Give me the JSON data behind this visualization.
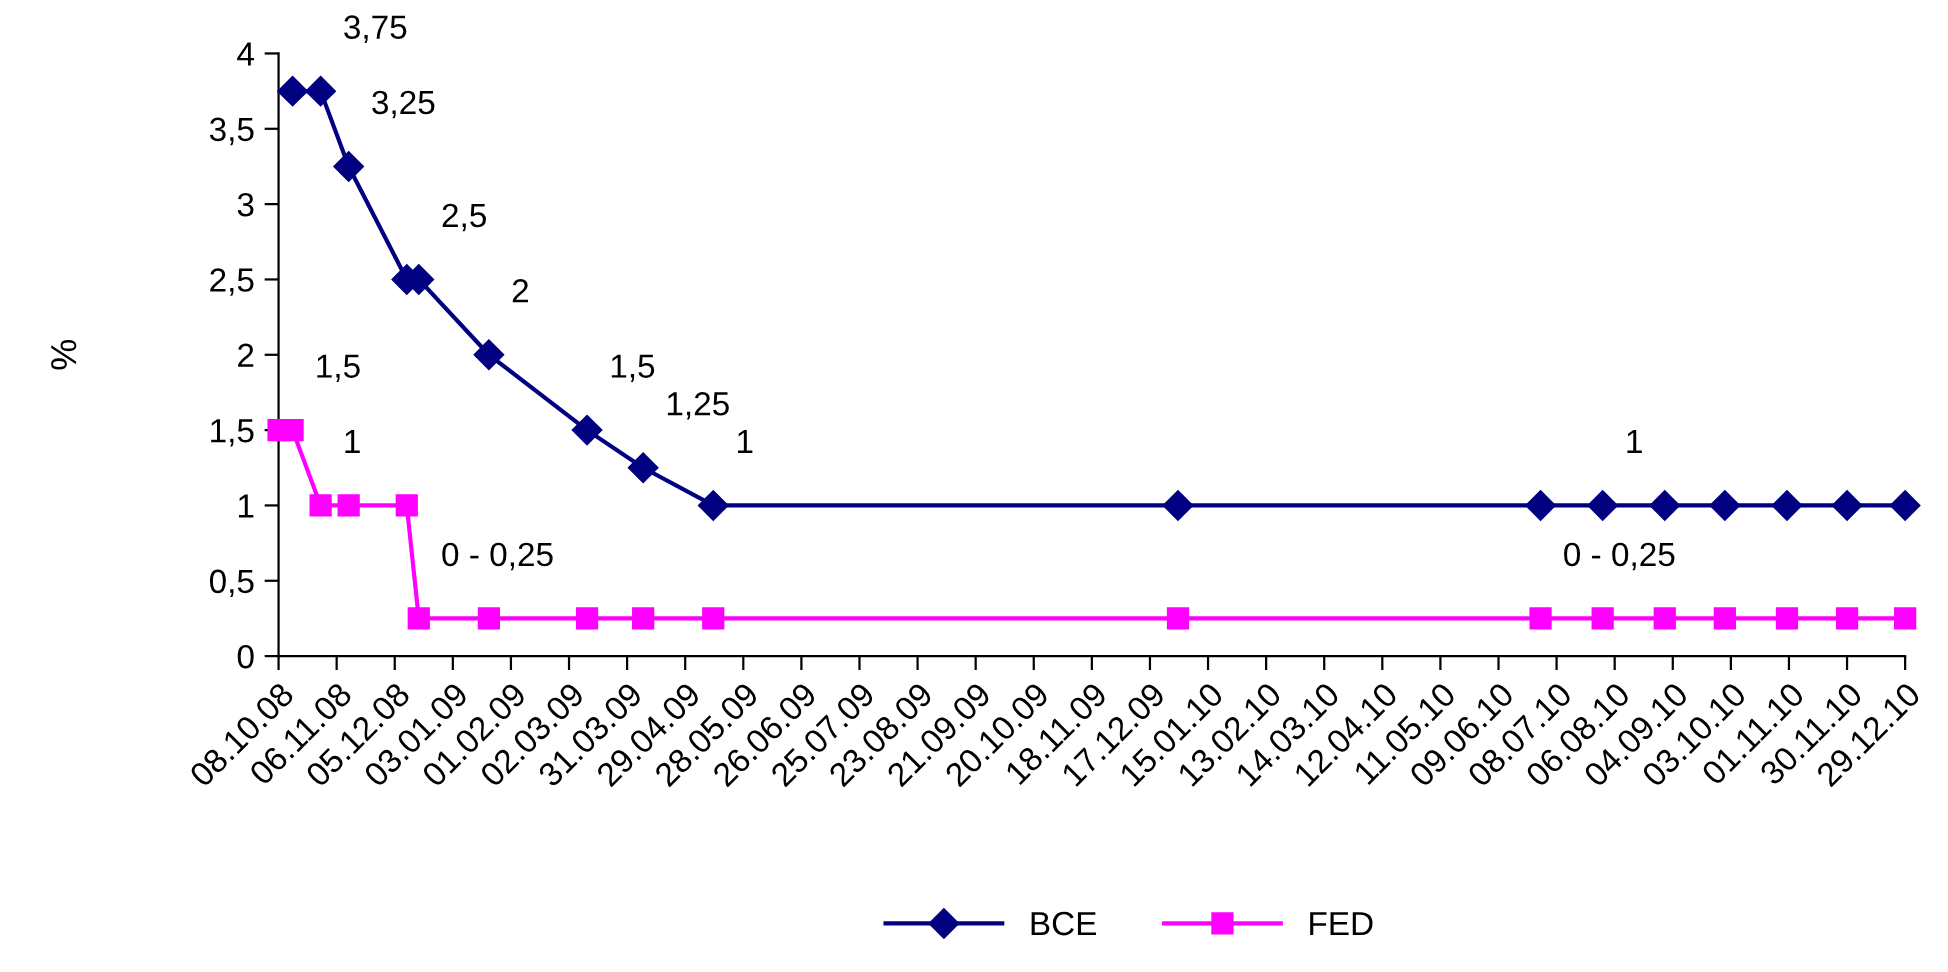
{
  "chart_data": {
    "type": "line",
    "ylabel": "%",
    "xlim": [
      "2008-10-08",
      "2010-12-29"
    ],
    "ylim": [
      0,
      4
    ],
    "yticks": [
      {
        "value": 0,
        "label": "0"
      },
      {
        "value": 0.5,
        "label": "0,5"
      },
      {
        "value": 1,
        "label": "1"
      },
      {
        "value": 1.5,
        "label": "1,5"
      },
      {
        "value": 2,
        "label": "2"
      },
      {
        "value": 2.5,
        "label": "2,5"
      },
      {
        "value": 3,
        "label": "3"
      },
      {
        "value": 3.5,
        "label": "3,5"
      },
      {
        "value": 4,
        "label": "4"
      }
    ],
    "xticks": [
      {
        "value": "2008-10-08",
        "label": "08.10.08"
      },
      {
        "value": "2008-11-06",
        "label": "06.11.08"
      },
      {
        "value": "2008-12-05",
        "label": "05.12.08"
      },
      {
        "value": "2009-01-03",
        "label": "03.01.09"
      },
      {
        "value": "2009-02-01",
        "label": "01.02.09"
      },
      {
        "value": "2009-03-02",
        "label": "02.03.09"
      },
      {
        "value": "2009-03-31",
        "label": "31.03.09"
      },
      {
        "value": "2009-04-29",
        "label": "29.04.09"
      },
      {
        "value": "2009-05-28",
        "label": "28.05.09"
      },
      {
        "value": "2009-06-26",
        "label": "26.06.09"
      },
      {
        "value": "2009-07-25",
        "label": "25.07.09"
      },
      {
        "value": "2009-08-23",
        "label": "23.08.09"
      },
      {
        "value": "2009-09-21",
        "label": "21.09.09"
      },
      {
        "value": "2009-10-20",
        "label": "20.10.09"
      },
      {
        "value": "2009-11-18",
        "label": "18.11.09"
      },
      {
        "value": "2009-12-17",
        "label": "17.12.09"
      },
      {
        "value": "2010-01-15",
        "label": "15.01.10"
      },
      {
        "value": "2010-02-13",
        "label": "13.02.10"
      },
      {
        "value": "2010-03-14",
        "label": "14.03.10"
      },
      {
        "value": "2010-04-12",
        "label": "12.04.10"
      },
      {
        "value": "2010-05-11",
        "label": "11.05.10"
      },
      {
        "value": "2010-06-09",
        "label": "09.06.10"
      },
      {
        "value": "2010-07-08",
        "label": "08.07.10"
      },
      {
        "value": "2010-08-06",
        "label": "06.08.10"
      },
      {
        "value": "2010-09-04",
        "label": "04.09.10"
      },
      {
        "value": "2010-10-03",
        "label": "03.10.10"
      },
      {
        "value": "2010-11-01",
        "label": "01.11.10"
      },
      {
        "value": "2010-11-30",
        "label": "30.11.10"
      },
      {
        "value": "2010-12-29",
        "label": "29.12.10"
      }
    ],
    "grid": false,
    "legend": "bottom",
    "series": [
      {
        "name": "BCE",
        "color": "#000080",
        "marker": "diamond",
        "x": [
          "2008-10-15",
          "2008-10-29",
          "2008-11-12",
          "2008-12-11",
          "2008-12-17",
          "2009-01-21",
          "2009-03-11",
          "2009-04-08",
          "2009-05-13",
          "2009-12-31",
          "2010-06-30",
          "2010-07-31",
          "2010-08-31",
          "2010-09-30",
          "2010-10-31",
          "2010-11-30",
          "2010-12-29"
        ],
        "values": [
          3.75,
          3.75,
          3.25,
          2.5,
          2.5,
          2,
          1.5,
          1.25,
          1,
          1,
          1,
          1,
          1,
          1,
          1,
          1,
          1
        ],
        "value_labels": [
          null,
          "3,75",
          "3,25",
          null,
          "2,5",
          "2",
          "1,5",
          "1,25",
          "1",
          null,
          null,
          "1",
          null,
          null,
          null,
          null,
          null
        ]
      },
      {
        "name": "FED",
        "color": "#ff00ff",
        "marker": "square",
        "x": [
          "2008-10-08",
          "2008-10-15",
          "2008-10-29",
          "2008-11-12",
          "2008-12-11",
          "2008-12-17",
          "2009-01-21",
          "2009-03-11",
          "2009-04-08",
          "2009-05-13",
          "2009-12-31",
          "2010-06-30",
          "2010-07-31",
          "2010-08-31",
          "2010-09-30",
          "2010-10-31",
          "2010-11-30",
          "2010-12-29"
        ],
        "values": [
          1.5,
          1.5,
          1,
          1,
          1,
          0.25,
          0.25,
          0.25,
          0.25,
          0.25,
          0.25,
          0.25,
          0.25,
          0.25,
          0.25,
          0.25,
          0.25,
          0.25
        ],
        "value_labels": [
          null,
          "1,5",
          "1",
          null,
          null,
          "0 - 0,25",
          null,
          null,
          null,
          null,
          null,
          "0 - 0,25",
          null,
          null,
          null,
          null,
          null,
          null
        ]
      }
    ]
  }
}
